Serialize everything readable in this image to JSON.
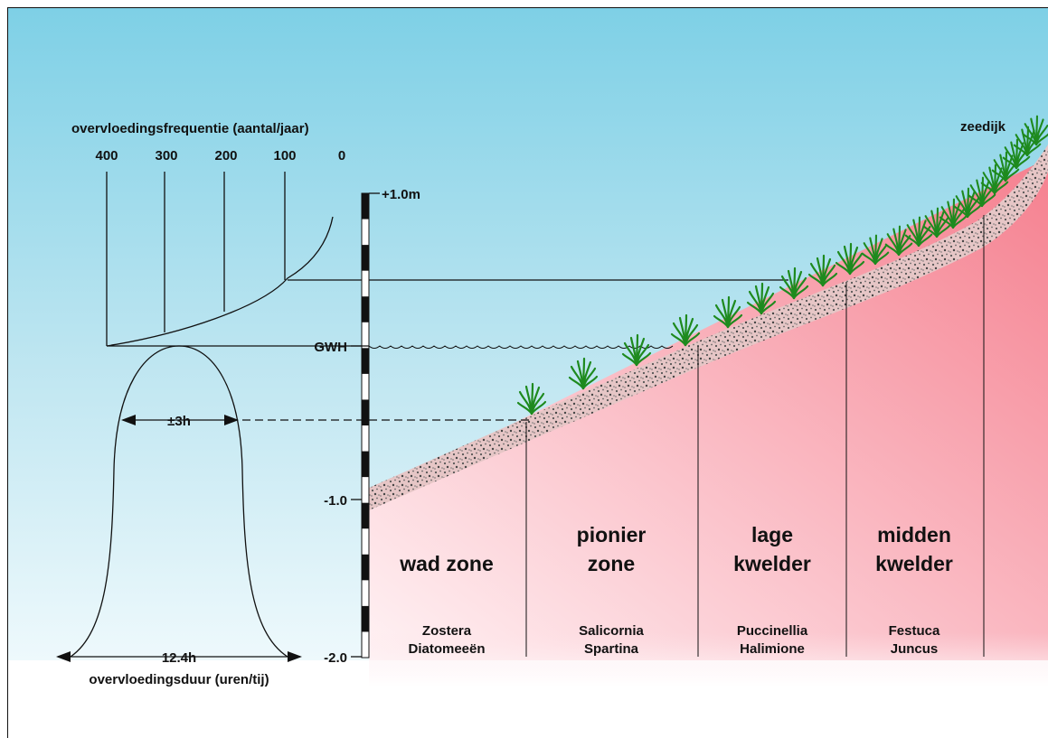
{
  "colors": {
    "sky_top": "#7ed0e6",
    "sky_bottom": "#e8f6fb",
    "soil_top": "#f58f9e",
    "soil_bottom": "#fde9ee",
    "sediment": "#e9c8c8",
    "plant": "#1e8a1e",
    "line": "#111111"
  },
  "labels": {
    "frequency_title": "overvloedingsfrequentie (aantal/jaar)",
    "frequency_ticks": [
      "400",
      "300",
      "200",
      "100",
      "0"
    ],
    "duration_title": "overvloedingsduur (uren/tij)",
    "duration_width": "12.4h",
    "duration_inner": "±3h",
    "dike": "zeedijk",
    "mean_high_water": "GWH",
    "scale_top": "+1.0m",
    "scale_mid": "-1.0",
    "scale_bottom": "-2.0"
  },
  "zones": [
    {
      "title_line1": "",
      "title_line2": "wad zone",
      "species_line1": "Zostera",
      "species_line2": "Diatomeeën"
    },
    {
      "title_line1": "pionier",
      "title_line2": "zone",
      "species_line1": "Salicornia",
      "species_line2": "Spartina"
    },
    {
      "title_line1": "lage",
      "title_line2": "kwelder",
      "species_line1": "Puccinellia",
      "species_line2": "Halimione"
    },
    {
      "title_line1": "midden",
      "title_line2": "kwelder",
      "species_line1": "Festuca",
      "species_line2": "Juncus"
    }
  ]
}
